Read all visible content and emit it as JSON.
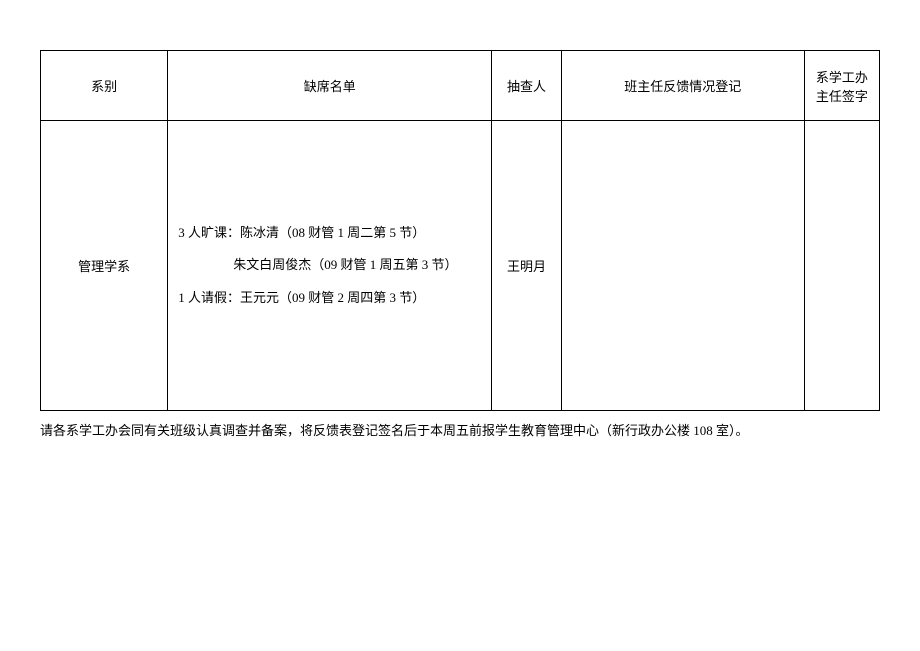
{
  "table": {
    "headers": {
      "department": "系别",
      "absentList": "缺席名单",
      "checker": "抽查人",
      "feedback": "班主任反馈情况登记",
      "signature": "系学工办主任签字"
    },
    "row": {
      "department": "管理学系",
      "absentLine1": "3 人旷课：陈冰清（08 财管 1 周二第 5 节）",
      "absentLine2": "朱文白周俊杰（09 财管 1 周五第 3 节）",
      "absentLine3": "1 人请假：王元元（09 财管 2 周四第 3 节）",
      "checker": "王明月",
      "feedback": "",
      "signature": ""
    }
  },
  "footerNote": "请各系学工办会同有关班级认真调查并备案，将反馈表登记签名后于本周五前报学生教育管理中心（新行政办公楼 108 室）。"
}
